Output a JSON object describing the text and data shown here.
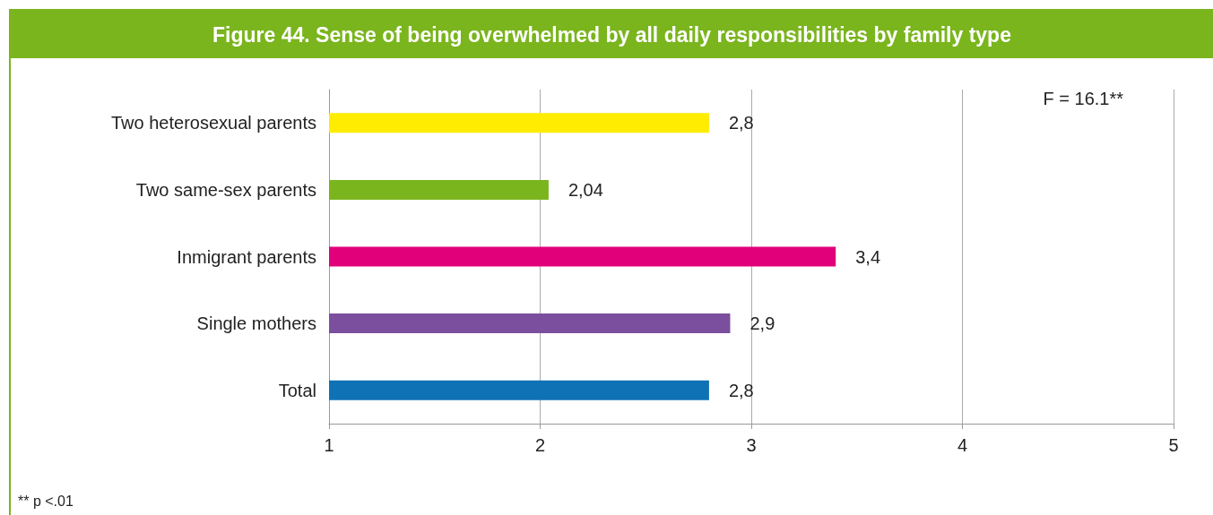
{
  "chart_data": {
    "type": "bar",
    "orientation": "horizontal",
    "title": "Figure 44. Sense of being overwhelmed by all daily responsibilities by family type",
    "categories": [
      "Two heterosexual parents",
      "Two same-sex parents",
      "Inmigrant parents",
      "Single mothers",
      "Total"
    ],
    "values": [
      2.8,
      2.04,
      3.4,
      2.9,
      2.8
    ],
    "value_labels": [
      "2,8",
      "2,04",
      "3,4",
      "2,9",
      "2,8"
    ],
    "colors": [
      "#ffec00",
      "#7ab51d",
      "#e2007a",
      "#7b4f9d",
      "#0e72b5"
    ],
    "xlim": [
      1,
      5
    ],
    "xticks": [
      1,
      2,
      3,
      4,
      5
    ],
    "grid": "x",
    "annotations": [
      "F = 16.1**",
      "** p <.01"
    ]
  }
}
